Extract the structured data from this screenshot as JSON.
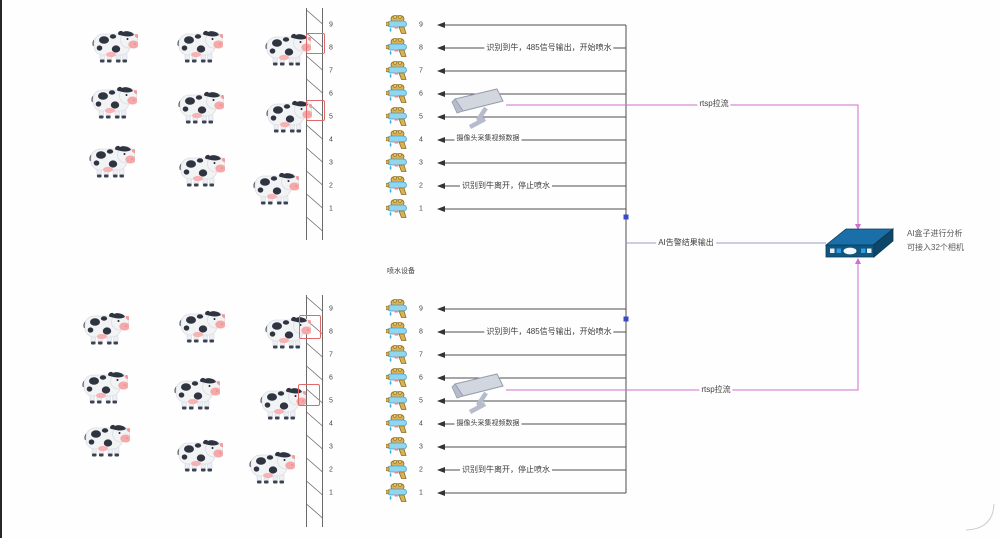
{
  "diagram": {
    "title_hint": "AI cattle spraying system diagram",
    "rows": [
      "9",
      "8",
      "7",
      "6",
      "5",
      "4",
      "3",
      "2",
      "1"
    ],
    "labels": {
      "start_spray": "识别到牛，485信号输出，开始喷水",
      "camera_collect": "摄像头采集视频数据",
      "stop_spray": "识别到牛离开，停止喷水",
      "spray_equipment": "喷水设备",
      "ai_alarm_output": "AI告警结果输出",
      "rtsp_stream": "rtsp拉流",
      "ai_box_line1": "AI盒子进行分析",
      "ai_box_line2": "可接入32个相机"
    },
    "icons": {
      "cow": "cow-icon",
      "water_gun": "water-gun-icon",
      "cctv_camera": "cctv-camera-icon",
      "ai_box": "ai-box-icon"
    },
    "colors": {
      "arrow_line": "#4f4f4f",
      "rtsp_line": "#cf6fcf",
      "alarm_line": "#9a9ad0",
      "detection_box": "#e06a6a",
      "connector_handle": "#3b49c4",
      "ai_box_top": "#1b6fa8",
      "ai_box_front": "#11567f",
      "fence": "#6a6a6a"
    },
    "counts": {
      "sections": 2,
      "sprayers_per_section": 9,
      "cows_per_section": 9,
      "detection_boxes": 4
    }
  }
}
